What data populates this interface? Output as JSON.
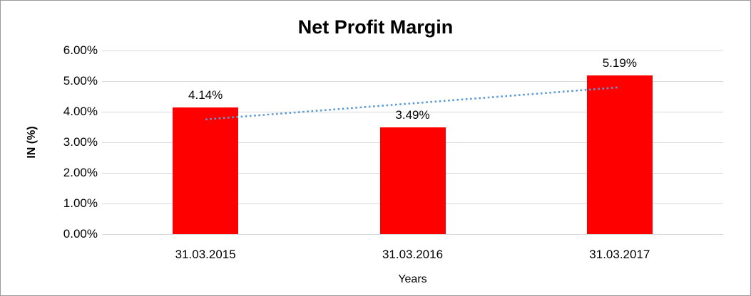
{
  "frame": {
    "background": "#ffffff",
    "border_color": "#9a9a9a"
  },
  "chart_data": {
    "type": "bar",
    "title": "Net Profit Margin",
    "categories": [
      "31.03.2015",
      "31.03.2016",
      "31.03.2017"
    ],
    "values": [
      4.14,
      3.49,
      5.19
    ],
    "data_labels": [
      "4.14%",
      "3.49%",
      "5.19%"
    ],
    "xlabel": "Years",
    "ylabel": "IN (%)",
    "ylim": [
      0,
      6
    ],
    "ytick_step": 1,
    "ytick_labels": [
      "0.00%",
      "1.00%",
      "2.00%",
      "3.00%",
      "4.00%",
      "5.00%",
      "6.00%"
    ],
    "grid": true,
    "legend": false,
    "bar_color": "#ff0000",
    "gridline_color": "#d9d9d9",
    "text_color": "#000000",
    "trendline": {
      "type": "linear",
      "style": "dotted",
      "color": "#5b9bd5"
    }
  }
}
